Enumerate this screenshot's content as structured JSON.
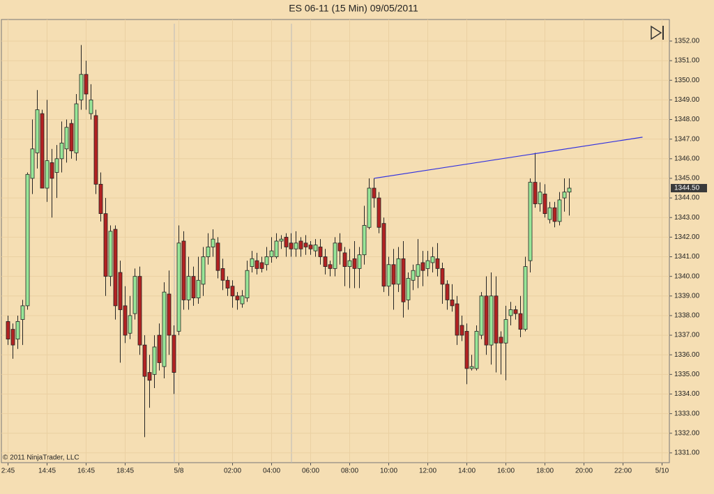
{
  "chart_data": {
    "type": "candlestick",
    "title": "ES 06-11 (15 Min)  09/05/2011",
    "watermark": "© 2011 NinjaTrader, LLC",
    "up_color": "#98e698",
    "down_color": "#b22222",
    "grid": true,
    "categories": [
      "2:45",
      null,
      null,
      null,
      null,
      null,
      null,
      null,
      "14:45",
      null,
      null,
      null,
      null,
      null,
      null,
      null,
      "16:45",
      null,
      null,
      null,
      null,
      null,
      null,
      null,
      "18:45",
      null,
      null,
      null,
      null,
      null,
      null,
      null,
      null,
      null,
      null,
      "5/8",
      null,
      null,
      null,
      null,
      null,
      null,
      null,
      null,
      null,
      null,
      "02:00",
      null,
      null,
      null,
      null,
      null,
      null,
      null,
      "04:00",
      null,
      null,
      null,
      null,
      null,
      null,
      null,
      "06:00",
      null,
      null,
      null,
      null,
      null,
      null,
      null,
      "08:00",
      null,
      null,
      null,
      null,
      null,
      null,
      null,
      "10:00",
      null,
      null,
      null,
      null,
      null,
      null,
      null,
      "12:00",
      null,
      null,
      null,
      null,
      null,
      null,
      null,
      "14:00",
      null,
      null,
      null,
      null,
      null,
      null,
      null,
      "16:00",
      null,
      null,
      null,
      null,
      null,
      null,
      null,
      "18:00",
      null,
      null,
      null,
      null,
      null,
      null,
      null,
      "20:00",
      null,
      null,
      null,
      null,
      null,
      null,
      null,
      "22:00",
      null,
      null,
      null,
      null,
      null,
      null,
      null,
      "5/10",
      null
    ],
    "open": [
      1337.7,
      1337.3,
      1336.8,
      1337.8,
      1338.5,
      1345.0,
      1346.3,
      1348.3,
      1344.5,
      1345.8,
      1345.3,
      1346.0,
      1346.5,
      1347.8,
      1346.3,
      1349.0,
      1350.3,
      1348.3,
      1348.2,
      1344.7,
      1343.2,
      1340.0,
      1342.4,
      1340.2,
      1338.5,
      1337.1,
      1338.1,
      1340.0,
      1336.5,
      1335.1,
      1335.0,
      1337.0,
      1335.4,
      1339.1,
      1337.0,
      1337.2,
      1341.8,
      1338.8,
      1340.0,
      1338.9,
      1339.6,
      1341.0,
      1341.5,
      1341.7,
      1340.4,
      1339.8,
      1339.5,
      1339.0,
      1338.6,
      1338.9,
      1340.5,
      1340.8,
      1340.7,
      1340.6,
      1341.0,
      1341.0,
      1341.8,
      1342.0,
      1341.7,
      1341.4,
      1341.8,
      1341.7,
      1341.6,
      1341.3,
      1341.5,
      1341.0,
      1340.6,
      1340.4,
      1341.7,
      1341.2,
      1340.5,
      1340.9,
      1340.4,
      1341.1,
      1342.5,
      1344.5,
      1344.0,
      1342.7,
      1339.5,
      1340.6,
      1339.6,
      1340.9,
      1338.8,
      1339.8,
      1340.0,
      1340.7,
      1340.4,
      1340.7,
      1340.9,
      1340.4,
      1339.6,
      1338.8,
      1338.6,
      1337.5,
      1337.2,
      1335.3,
      1335.3,
      1337.0,
      1339.0,
      1336.5,
      1339.0,
      1336.9,
      1336.6,
      1338.0,
      1338.3,
      1338.1,
      1337.3,
      1340.8,
      1344.8,
      1343.7,
      1344.2,
      1342.9,
      1343.5,
      1342.8,
      1344.0,
      1344.3,
      null,
      null,
      null,
      null,
      null,
      null,
      null,
      null,
      null,
      null,
      null,
      null,
      null,
      null,
      null,
      null,
      null,
      null,
      null,
      null
    ],
    "high": [
      1338.0,
      1337.6,
      1338.0,
      1338.8,
      1345.3,
      1348.0,
      1349.5,
      1348.5,
      1349.0,
      1346.5,
      1346.7,
      1347.9,
      1348.0,
      1348.0,
      1349.3,
      1351.8,
      1351.0,
      1349.8,
      1348.5,
      1345.3,
      1344.0,
      1342.6,
      1342.6,
      1340.8,
      1339.5,
      1339.0,
      1340.4,
      1340.5,
      1337.0,
      1336.0,
      1337.0,
      1337.6,
      1339.7,
      1340.3,
      1337.5,
      1342.6,
      1342.3,
      1341.0,
      1340.5,
      1341.0,
      1341.5,
      1342.2,
      1342.4,
      1342.0,
      1340.9,
      1340.0,
      1339.8,
      1339.2,
      1339.3,
      1340.8,
      1341.3,
      1341.2,
      1341.0,
      1341.5,
      1342.0,
      1342.2,
      1342.1,
      1342.2,
      1342.2,
      1342.3,
      1342.0,
      1342.1,
      1341.8,
      1341.9,
      1341.9,
      1341.4,
      1340.8,
      1342.0,
      1342.2,
      1341.5,
      1341.4,
      1341.8,
      1341.5,
      1343.6,
      1345.0,
      1345.0,
      1344.3,
      1343.0,
      1341.0,
      1341.4,
      1341.5,
      1341.8,
      1340.2,
      1340.6,
      1341.9,
      1341.3,
      1341.3,
      1341.5,
      1341.7,
      1340.7,
      1339.8,
      1339.6,
      1339.0,
      1338.0,
      1337.6,
      1336.0,
      1337.5,
      1339.2,
      1340.0,
      1340.2,
      1340.0,
      1337.2,
      1338.5,
      1338.7,
      1338.5,
      1339.0,
      1341.0,
      1345.0,
      1346.3,
      1344.8,
      1344.7,
      1343.8,
      1343.8,
      1344.3,
      1345.0,
      1345.0,
      null,
      null,
      null,
      null,
      null,
      null,
      null,
      null,
      null,
      null,
      null,
      null,
      null,
      null,
      null,
      null,
      null,
      null,
      null,
      null
    ],
    "low": [
      1336.5,
      1335.8,
      1336.3,
      1336.5,
      1338.3,
      1344.2,
      1345.5,
      1344.5,
      1343.8,
      1343.0,
      1344.0,
      1345.3,
      1345.8,
      1346.0,
      1345.9,
      1348.5,
      1348.5,
      1348.0,
      1344.2,
      1342.8,
      1339.0,
      1339.5,
      1337.8,
      1335.6,
      1336.6,
      1336.8,
      1337.8,
      1336.0,
      1331.8,
      1333.3,
      1334.3,
      1335.2,
      1334.8,
      1336.0,
      1334.0,
      1337.0,
      1338.3,
      1338.3,
      1338.5,
      1338.6,
      1339.0,
      1340.6,
      1341.0,
      1339.9,
      1339.3,
      1339.0,
      1338.4,
      1338.3,
      1338.4,
      1338.7,
      1340.2,
      1340.1,
      1340.2,
      1340.3,
      1340.7,
      1340.9,
      1341.4,
      1341.0,
      1341.0,
      1341.0,
      1341.0,
      1341.1,
      1341.1,
      1341.0,
      1340.6,
      1340.1,
      1340.0,
      1340.0,
      1340.6,
      1339.5,
      1339.4,
      1339.4,
      1339.4,
      1340.6,
      1342.4,
      1343.5,
      1342.2,
      1339.2,
      1339.0,
      1338.3,
      1339.2,
      1337.9,
      1338.3,
      1339.3,
      1339.4,
      1339.5,
      1340.0,
      1340.2,
      1340.0,
      1338.6,
      1338.3,
      1338.2,
      1336.5,
      1336.7,
      1334.5,
      1335.2,
      1335.2,
      1336.8,
      1336.0,
      1335.5,
      1335.1,
      1335.0,
      1334.7,
      1337.5,
      1337.8,
      1336.9,
      1337.2,
      1340.2,
      1343.5,
      1343.3,
      1343.0,
      1342.7,
      1342.5,
      1342.6,
      1343.3,
      1343.1,
      null,
      null,
      null,
      null,
      null,
      null,
      null,
      null,
      null,
      null,
      null,
      null,
      null,
      null,
      null,
      null,
      null,
      null,
      null,
      null
    ],
    "close": [
      1336.8,
      1336.5,
      1337.7,
      1338.5,
      1345.2,
      1346.5,
      1348.5,
      1344.5,
      1345.9,
      1345.0,
      1346.0,
      1346.8,
      1347.6,
      1346.4,
      1348.8,
      1350.3,
      1349.3,
      1349.0,
      1344.7,
      1343.2,
      1340.0,
      1342.3,
      1338.5,
      1338.3,
      1337.0,
      1338.0,
      1340.0,
      1336.5,
      1334.9,
      1334.7,
      1336.4,
      1335.6,
      1339.2,
      1337.0,
      1335.1,
      1341.7,
      1338.8,
      1340.0,
      1338.9,
      1339.8,
      1341.0,
      1341.5,
      1341.9,
      1340.3,
      1339.8,
      1339.4,
      1339.0,
      1338.8,
      1339.0,
      1340.3,
      1340.9,
      1340.4,
      1340.4,
      1341.0,
      1341.3,
      1341.8,
      1341.9,
      1341.5,
      1341.4,
      1341.7,
      1341.4,
      1341.5,
      1341.4,
      1341.6,
      1341.0,
      1340.5,
      1340.4,
      1341.7,
      1341.3,
      1340.5,
      1340.8,
      1340.4,
      1341.1,
      1342.6,
      1344.5,
      1344.0,
      1342.5,
      1339.5,
      1340.6,
      1339.6,
      1340.9,
      1338.7,
      1339.9,
      1340.3,
      1340.6,
      1340.3,
      1340.8,
      1341.0,
      1340.4,
      1339.6,
      1338.8,
      1338.5,
      1337.0,
      1337.0,
      1335.3,
      1335.4,
      1337.2,
      1339.0,
      1336.5,
      1339.0,
      1336.6,
      1336.6,
      1337.8,
      1338.3,
      1338.1,
      1337.3,
      1340.5,
      1344.8,
      1343.7,
      1344.3,
      1343.2,
      1343.5,
      1342.8,
      1343.9,
      1344.3,
      1344.5,
      null,
      null,
      null,
      null,
      null,
      null,
      null,
      null,
      null,
      null,
      null,
      null,
      null,
      null,
      null,
      null,
      null,
      null,
      null,
      null
    ],
    "trendline": {
      "color": "#3030e0",
      "x": [
        75,
        130
      ],
      "y": [
        1345.0,
        1347.1
      ]
    },
    "last_price": {
      "value": 1344.5,
      "label": "1344.50"
    },
    "ylim": [
      1330.5,
      1353.1
    ],
    "yticks": [
      {
        "value": 1331,
        "label": "1331.00"
      },
      {
        "value": 1332,
        "label": "1332.00"
      },
      {
        "value": 1333,
        "label": "1333.00"
      },
      {
        "value": 1334,
        "label": "1334.00"
      },
      {
        "value": 1335,
        "label": "1335.00"
      },
      {
        "value": 1336,
        "label": "1336.00"
      },
      {
        "value": 1337,
        "label": "1337.00"
      },
      {
        "value": 1338,
        "label": "1338.00"
      },
      {
        "value": 1339,
        "label": "1339.00"
      },
      {
        "value": 1340,
        "label": "1340.00"
      },
      {
        "value": 1341,
        "label": "1341.00"
      },
      {
        "value": 1342,
        "label": "1342.00"
      },
      {
        "value": 1343,
        "label": "1343.00"
      },
      {
        "value": 1344,
        "label": "1344.00"
      },
      {
        "value": 1345,
        "label": "1345.00"
      },
      {
        "value": 1346,
        "label": "1346.00"
      },
      {
        "value": 1347,
        "label": "1347.00"
      },
      {
        "value": 1348,
        "label": "1348.00"
      },
      {
        "value": 1349,
        "label": "1349.00"
      },
      {
        "value": 1350,
        "label": "1350.00"
      },
      {
        "value": 1351,
        "label": "1351.00"
      },
      {
        "value": 1352,
        "label": "1352.00"
      }
    ]
  }
}
